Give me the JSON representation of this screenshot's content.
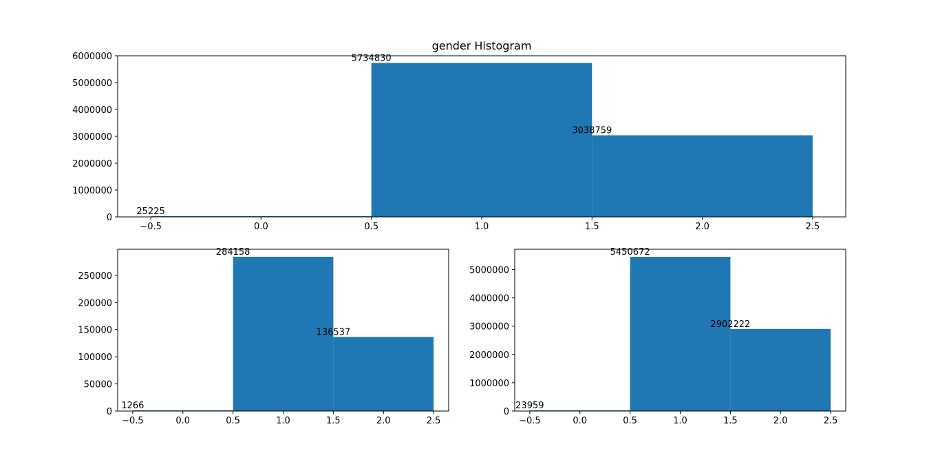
{
  "chart_data": [
    {
      "type": "bar",
      "title": "gender Histogram",
      "bins": [
        {
          "x_start": -0.5,
          "x_end": 0.5,
          "value": 25225,
          "label": "25225"
        },
        {
          "x_start": 0.5,
          "x_end": 1.5,
          "value": 5734830,
          "label": "5734830"
        },
        {
          "x_start": 1.5,
          "x_end": 2.5,
          "value": 3038759,
          "label": "3038759"
        }
      ],
      "xlim": [
        -0.65,
        2.65
      ],
      "ylim": [
        0,
        6000000
      ],
      "x_ticks": [
        -0.5,
        0.0,
        0.5,
        1.0,
        1.5,
        2.0,
        2.5
      ],
      "x_tick_labels": [
        "−0.5",
        "0.0",
        "0.5",
        "1.0",
        "1.5",
        "2.0",
        "2.5"
      ],
      "y_ticks": [
        0,
        1000000,
        2000000,
        3000000,
        4000000,
        5000000,
        6000000
      ],
      "y_tick_labels": [
        "0",
        "1000000",
        "2000000",
        "3000000",
        "4000000",
        "5000000",
        "6000000"
      ],
      "color": "#1f77b4",
      "grid": false
    },
    {
      "type": "bar",
      "title": "",
      "bins": [
        {
          "x_start": -0.5,
          "x_end": 0.5,
          "value": 1266,
          "label": "1266"
        },
        {
          "x_start": 0.5,
          "x_end": 1.5,
          "value": 284158,
          "label": "284158"
        },
        {
          "x_start": 1.5,
          "x_end": 2.5,
          "value": 136537,
          "label": "136537"
        }
      ],
      "xlim": [
        -0.65,
        2.65
      ],
      "ylim": [
        0,
        298000
      ],
      "x_ticks": [
        -0.5,
        0.0,
        0.5,
        1.0,
        1.5,
        2.0,
        2.5
      ],
      "x_tick_labels": [
        "−0.5",
        "0.0",
        "0.5",
        "1.0",
        "1.5",
        "2.0",
        "2.5"
      ],
      "y_ticks": [
        0,
        50000,
        100000,
        150000,
        200000,
        250000
      ],
      "y_tick_labels": [
        "0",
        "50000",
        "100000",
        "150000",
        "200000",
        "250000"
      ],
      "color": "#1f77b4",
      "grid": false
    },
    {
      "type": "bar",
      "title": "",
      "bins": [
        {
          "x_start": -0.5,
          "x_end": 0.5,
          "value": 23959,
          "label": "23959"
        },
        {
          "x_start": 0.5,
          "x_end": 1.5,
          "value": 5450672,
          "label": "5450672"
        },
        {
          "x_start": 1.5,
          "x_end": 2.5,
          "value": 2902222,
          "label": "2902222"
        }
      ],
      "xlim": [
        -0.65,
        2.65
      ],
      "ylim": [
        0,
        5720000
      ],
      "x_ticks": [
        -0.5,
        0.0,
        0.5,
        1.0,
        1.5,
        2.0,
        2.5
      ],
      "x_tick_labels": [
        "−0.5",
        "0.0",
        "0.5",
        "1.0",
        "1.5",
        "2.0",
        "2.5"
      ],
      "y_ticks": [
        0,
        1000000,
        2000000,
        3000000,
        4000000,
        5000000
      ],
      "y_tick_labels": [
        "0",
        "1000000",
        "2000000",
        "3000000",
        "4000000",
        "5000000"
      ],
      "color": "#1f77b4",
      "grid": false
    }
  ]
}
